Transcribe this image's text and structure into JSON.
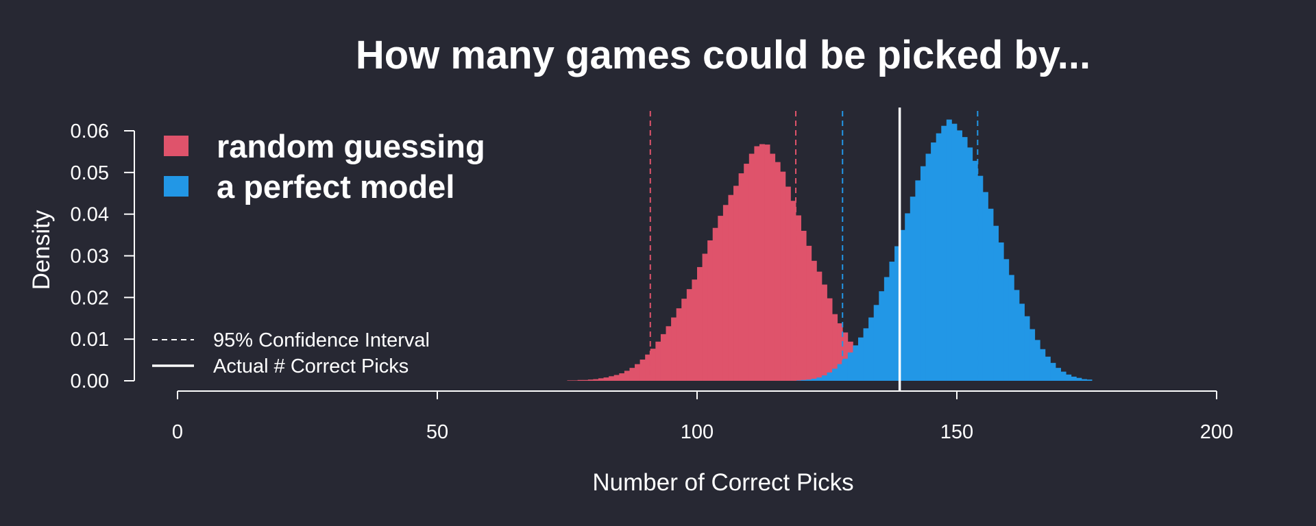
{
  "chart_data": {
    "type": "bar",
    "title": "How many games could be picked by...",
    "xlabel": "Number of Correct Picks",
    "ylabel": "Density",
    "xlim": [
      0,
      200
    ],
    "ylim": [
      0,
      0.06
    ],
    "x_ticks": [
      0,
      50,
      100,
      150,
      200
    ],
    "y_ticks": [
      0.0,
      0.01,
      0.02,
      0.03,
      0.04,
      0.05,
      0.06
    ],
    "y_tick_labels": [
      "0.00",
      "0.01",
      "0.02",
      "0.03",
      "0.04",
      "0.05",
      "0.06"
    ],
    "x_tick_labels": [
      "0",
      "50",
      "100",
      "150",
      "200"
    ],
    "bin_width": 1,
    "legend_position": "top-left",
    "series": [
      {
        "name": "random guessing",
        "color": "#DF536B",
        "bin_start": 75,
        "values": [
          0.0001,
          0.0001,
          0.0002,
          0.0002,
          0.0003,
          0.0004,
          0.0006,
          0.0008,
          0.0011,
          0.0014,
          0.0018,
          0.0024,
          0.0031,
          0.004,
          0.0051,
          0.0063,
          0.0077,
          0.0094,
          0.0112,
          0.0131,
          0.0152,
          0.0174,
          0.0197,
          0.022,
          0.0243,
          0.0273,
          0.0305,
          0.0337,
          0.0367,
          0.0396,
          0.0422,
          0.0446,
          0.0468,
          0.0498,
          0.0521,
          0.0545,
          0.0563,
          0.0568,
          0.0567,
          0.0545,
          0.0525,
          0.0502,
          0.0466,
          0.0432,
          0.0397,
          0.036,
          0.0324,
          0.0288,
          0.0262,
          0.0231,
          0.0198,
          0.016,
          0.0138,
          0.0116,
          0.0094,
          0.0076,
          0.006,
          0.0047,
          0.0035,
          0.0026,
          0.0019,
          0.0014,
          0.001,
          0.0007,
          0.0005,
          0.0003
        ]
      },
      {
        "name": "a perfect model",
        "color": "#2297E6",
        "bin_start": 119,
        "values": [
          0.0001,
          0.0002,
          0.0003,
          0.0005,
          0.0008,
          0.0013,
          0.002,
          0.0029,
          0.004,
          0.0053,
          0.0068,
          0.0085,
          0.0104,
          0.0126,
          0.0152,
          0.0182,
          0.0215,
          0.0249,
          0.0286,
          0.0323,
          0.0362,
          0.0402,
          0.0442,
          0.0481,
          0.0515,
          0.0545,
          0.0572,
          0.0594,
          0.0612,
          0.0627,
          0.0617,
          0.0601,
          0.0585,
          0.056,
          0.0528,
          0.0492,
          0.0453,
          0.0413,
          0.0372,
          0.0332,
          0.0292,
          0.0254,
          0.0218,
          0.0185,
          0.0155,
          0.0124,
          0.0098,
          0.0076,
          0.0058,
          0.0043,
          0.0031,
          0.0022,
          0.0015,
          0.001,
          0.0007,
          0.0004,
          0.0003
        ]
      }
    ],
    "reference_lines": [
      {
        "name": "random-ci-lower",
        "x": 91,
        "color": "#DF536B",
        "style": "dashed"
      },
      {
        "name": "random-ci-upper",
        "x": 119,
        "color": "#DF536B",
        "style": "dashed"
      },
      {
        "name": "perfect-ci-lower",
        "x": 128,
        "color": "#2297E6",
        "style": "dashed"
      },
      {
        "name": "perfect-ci-upper",
        "x": 154,
        "color": "#2297E6",
        "style": "dashed"
      },
      {
        "name": "actual-correct-picks",
        "x": 139,
        "color": "#FFFFFF",
        "style": "solid"
      }
    ],
    "line_legend": [
      {
        "label": "95% Confidence Interval",
        "style": "dashed"
      },
      {
        "label": "Actual # Correct Picks",
        "style": "solid"
      }
    ]
  }
}
